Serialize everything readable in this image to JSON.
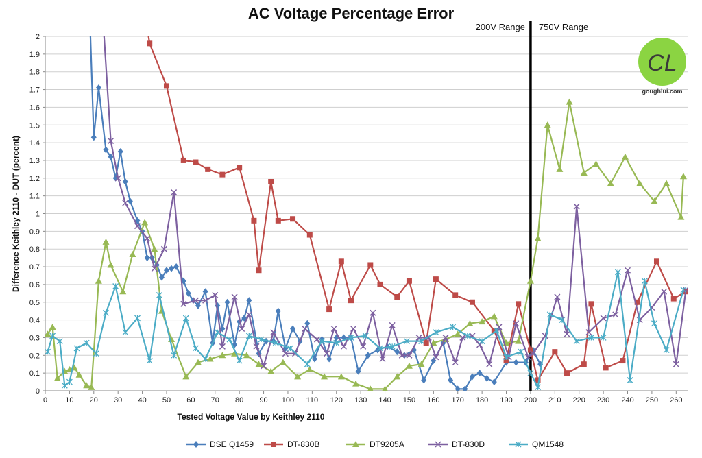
{
  "chart_data": {
    "type": "line",
    "title": "AC Voltage Percentage Error",
    "xlabel": "Tested Voltage Value by Keithley 2110",
    "ylabel": "Difference Keithley 2110 - DUT (percent)",
    "xlim": [
      0,
      265
    ],
    "ylim": [
      0,
      2
    ],
    "x_ticks": [
      0,
      10,
      20,
      30,
      40,
      50,
      60,
      70,
      80,
      90,
      100,
      110,
      120,
      130,
      140,
      150,
      160,
      170,
      180,
      190,
      200,
      210,
      220,
      230,
      240,
      250,
      260
    ],
    "y_ticks": [
      0,
      0.1,
      0.2,
      0.3,
      0.4,
      0.5,
      0.6,
      0.7,
      0.8,
      0.9,
      1,
      1.1,
      1.2,
      1.3,
      1.4,
      1.5,
      1.6,
      1.7,
      1.8,
      1.9,
      2
    ],
    "grid": "horizontal",
    "legend_position": "bottom",
    "annotations": [
      {
        "label": "200V Range",
        "side": "left",
        "x": 200
      },
      {
        "label": "750V Range",
        "side": "right",
        "x": 200
      }
    ],
    "series": [
      {
        "name": "DSE Q1459",
        "color": "#4a7ebb",
        "marker": "diamond",
        "points": [
          [
            18.5,
            2.05
          ],
          [
            20,
            1.43
          ],
          [
            22,
            1.71
          ],
          [
            25,
            1.36
          ],
          [
            27,
            1.32
          ],
          [
            29,
            1.2
          ],
          [
            31,
            1.35
          ],
          [
            33,
            1.18
          ],
          [
            35,
            1.07
          ],
          [
            38,
            0.96
          ],
          [
            40,
            0.9
          ],
          [
            42,
            0.75
          ],
          [
            44,
            0.75
          ],
          [
            46,
            0.71
          ],
          [
            48,
            0.64
          ],
          [
            50,
            0.68
          ],
          [
            52,
            0.69
          ],
          [
            54,
            0.7
          ],
          [
            57,
            0.62
          ],
          [
            59,
            0.55
          ],
          [
            61,
            0.51
          ],
          [
            63,
            0.48
          ],
          [
            66,
            0.56
          ],
          [
            69,
            0.27
          ],
          [
            71,
            0.48
          ],
          [
            73,
            0.35
          ],
          [
            75,
            0.5
          ],
          [
            78,
            0.26
          ],
          [
            80,
            0.39
          ],
          [
            82,
            0.41
          ],
          [
            84,
            0.51
          ],
          [
            88,
            0.21
          ],
          [
            91,
            0.28
          ],
          [
            94,
            0.28
          ],
          [
            96,
            0.45
          ],
          [
            99,
            0.24
          ],
          [
            102,
            0.35
          ],
          [
            105,
            0.28
          ],
          [
            108,
            0.38
          ],
          [
            111,
            0.18
          ],
          [
            114,
            0.29
          ],
          [
            117,
            0.18
          ],
          [
            120,
            0.3
          ],
          [
            123,
            0.3
          ],
          [
            126,
            0.3
          ],
          [
            129,
            0.11
          ],
          [
            133,
            0.2
          ],
          [
            137,
            0.23
          ],
          [
            141,
            0.25
          ],
          [
            145,
            0.22
          ],
          [
            148,
            0.2
          ],
          [
            152,
            0.23
          ],
          [
            156,
            0.06
          ],
          [
            160,
            0.17
          ],
          [
            164,
            0.27
          ],
          [
            167,
            0.06
          ],
          [
            170,
            0.01
          ],
          [
            173,
            0.01
          ],
          [
            176,
            0.08
          ],
          [
            179,
            0.1
          ],
          [
            182,
            0.07
          ],
          [
            185,
            0.05
          ],
          [
            190,
            0.16
          ],
          [
            194,
            0.16
          ],
          [
            198,
            0.16
          ],
          [
            201,
            0.23
          ],
          [
            204,
            0.15
          ]
        ]
      },
      {
        "name": "DT-830B",
        "color": "#be4b48",
        "marker": "square",
        "points": [
          [
            42,
            2.05
          ],
          [
            43,
            1.96
          ],
          [
            50,
            1.72
          ],
          [
            57,
            1.3
          ],
          [
            62,
            1.29
          ],
          [
            67,
            1.25
          ],
          [
            73,
            1.22
          ],
          [
            80,
            1.26
          ],
          [
            86,
            0.96
          ],
          [
            88,
            0.68
          ],
          [
            93,
            1.18
          ],
          [
            96,
            0.96
          ],
          [
            102,
            0.97
          ],
          [
            109,
            0.88
          ],
          [
            117,
            0.46
          ],
          [
            122,
            0.73
          ],
          [
            126,
            0.51
          ],
          [
            134,
            0.71
          ],
          [
            138,
            0.6
          ],
          [
            145,
            0.53
          ],
          [
            150,
            0.62
          ],
          [
            157,
            0.27
          ],
          [
            161,
            0.63
          ],
          [
            169,
            0.54
          ],
          [
            176,
            0.5
          ],
          [
            185,
            0.34
          ],
          [
            190,
            0.17
          ],
          [
            195,
            0.49
          ],
          [
            200,
            0.23
          ],
          [
            203,
            0.06
          ],
          [
            210,
            0.22
          ],
          [
            215,
            0.1
          ],
          [
            222,
            0.15
          ],
          [
            225,
            0.49
          ],
          [
            231,
            0.13
          ],
          [
            238,
            0.17
          ],
          [
            244,
            0.5
          ],
          [
            252,
            0.73
          ],
          [
            259,
            0.52
          ],
          [
            264,
            0.56
          ]
        ],
        "xy_mode": "split",
        "split_range": [
          200,
          265
        ]
      },
      {
        "name": "DT9205A",
        "color": "#98b954",
        "marker": "triangle",
        "points": [
          [
            1,
            0.32
          ],
          [
            3,
            0.36
          ],
          [
            5,
            0.07
          ],
          [
            8,
            0.11
          ],
          [
            10,
            0.12
          ],
          [
            12,
            0.13
          ],
          [
            14,
            0.09
          ],
          [
            17,
            0.03
          ],
          [
            19,
            0.02
          ],
          [
            22,
            0.62
          ],
          [
            25,
            0.84
          ],
          [
            27,
            0.71
          ],
          [
            32,
            0.56
          ],
          [
            36,
            0.77
          ],
          [
            41,
            0.95
          ],
          [
            45,
            0.8
          ],
          [
            48,
            0.45
          ],
          [
            52,
            0.29
          ],
          [
            58,
            0.08
          ],
          [
            63,
            0.16
          ],
          [
            68,
            0.18
          ],
          [
            73,
            0.2
          ],
          [
            78,
            0.21
          ],
          [
            83,
            0.2
          ],
          [
            88,
            0.15
          ],
          [
            93,
            0.11
          ],
          [
            98,
            0.16
          ],
          [
            104,
            0.08
          ],
          [
            109,
            0.12
          ],
          [
            115,
            0.08
          ],
          [
            122,
            0.08
          ],
          [
            128,
            0.04
          ],
          [
            134,
            0.01
          ],
          [
            140,
            0.01
          ],
          [
            145,
            0.08
          ],
          [
            150,
            0.14
          ],
          [
            155,
            0.15
          ],
          [
            160,
            0.27
          ],
          [
            165,
            0.29
          ],
          [
            170,
            0.32
          ],
          [
            175,
            0.38
          ],
          [
            180,
            0.39
          ],
          [
            185,
            0.42
          ],
          [
            190,
            0.27
          ],
          [
            195,
            0.28
          ],
          [
            200,
            0.62
          ],
          [
            203,
            0.86
          ],
          [
            207,
            1.5
          ],
          [
            212,
            1.25
          ],
          [
            216,
            1.63
          ],
          [
            222,
            1.23
          ],
          [
            227,
            1.28
          ],
          [
            233,
            1.17
          ],
          [
            239,
            1.32
          ],
          [
            245,
            1.17
          ],
          [
            251,
            1.07
          ],
          [
            256,
            1.17
          ],
          [
            262,
            0.98
          ],
          [
            263,
            1.21
          ]
        ]
      },
      {
        "name": "DT-830D",
        "color": "#7d60a0",
        "marker": "x",
        "points": [
          [
            24,
            2.05
          ],
          [
            27,
            1.41
          ],
          [
            30,
            1.2
          ],
          [
            33,
            1.06
          ],
          [
            38,
            0.93
          ],
          [
            42,
            0.86
          ],
          [
            45,
            0.69
          ],
          [
            49,
            0.8
          ],
          [
            53,
            1.12
          ],
          [
            57,
            0.49
          ],
          [
            62,
            0.51
          ],
          [
            66,
            0.51
          ],
          [
            70,
            0.54
          ],
          [
            73,
            0.25
          ],
          [
            78,
            0.53
          ],
          [
            81,
            0.35
          ],
          [
            84,
            0.43
          ],
          [
            87,
            0.25
          ],
          [
            90,
            0.14
          ],
          [
            94,
            0.33
          ],
          [
            99,
            0.21
          ],
          [
            103,
            0.21
          ],
          [
            107,
            0.35
          ],
          [
            112,
            0.29
          ],
          [
            116,
            0.21
          ],
          [
            119,
            0.35
          ],
          [
            123,
            0.25
          ],
          [
            127,
            0.35
          ],
          [
            131,
            0.25
          ],
          [
            135,
            0.44
          ],
          [
            139,
            0.18
          ],
          [
            143,
            0.37
          ],
          [
            147,
            0.2
          ],
          [
            150,
            0.2
          ],
          [
            154,
            0.3
          ],
          [
            158,
            0.3
          ],
          [
            161,
            0.19
          ],
          [
            165,
            0.3
          ],
          [
            169,
            0.16
          ],
          [
            172,
            0.3
          ],
          [
            176,
            0.31
          ],
          [
            179,
            0.26
          ],
          [
            183,
            0.15
          ],
          [
            187,
            0.36
          ],
          [
            191,
            0.19
          ],
          [
            194,
            0.38
          ],
          [
            199,
            0.19
          ],
          [
            201,
            0.21
          ],
          [
            206,
            0.31
          ],
          [
            211,
            0.53
          ],
          [
            215,
            0.32
          ],
          [
            219,
            1.04
          ],
          [
            224,
            0.33
          ],
          [
            230,
            0.41
          ],
          [
            235,
            0.43
          ],
          [
            240,
            0.68
          ],
          [
            245,
            0.4
          ],
          [
            250,
            0.47
          ],
          [
            255,
            0.56
          ],
          [
            260,
            0.15
          ],
          [
            264,
            0.57
          ]
        ]
      },
      {
        "name": "QM1548",
        "color": "#4bacc6",
        "marker": "asterisk",
        "points": [
          [
            1,
            0.22
          ],
          [
            3,
            0.31
          ],
          [
            6,
            0.28
          ],
          [
            8,
            0.03
          ],
          [
            10,
            0.05
          ],
          [
            13,
            0.24
          ],
          [
            17,
            0.27
          ],
          [
            21,
            0.21
          ],
          [
            25,
            0.44
          ],
          [
            29,
            0.59
          ],
          [
            33,
            0.33
          ],
          [
            38,
            0.41
          ],
          [
            43,
            0.17
          ],
          [
            47,
            0.54
          ],
          [
            53,
            0.2
          ],
          [
            58,
            0.41
          ],
          [
            62,
            0.24
          ],
          [
            66,
            0.18
          ],
          [
            71,
            0.33
          ],
          [
            76,
            0.29
          ],
          [
            80,
            0.17
          ],
          [
            84,
            0.31
          ],
          [
            89,
            0.29
          ],
          [
            95,
            0.27
          ],
          [
            101,
            0.24
          ],
          [
            108,
            0.15
          ],
          [
            114,
            0.28
          ],
          [
            120,
            0.27
          ],
          [
            126,
            0.3
          ],
          [
            132,
            0.31
          ],
          [
            138,
            0.24
          ],
          [
            143,
            0.25
          ],
          [
            149,
            0.28
          ],
          [
            155,
            0.28
          ],
          [
            161,
            0.33
          ],
          [
            168,
            0.36
          ],
          [
            174,
            0.31
          ],
          [
            180,
            0.28
          ],
          [
            186,
            0.34
          ],
          [
            190,
            0.19
          ],
          [
            196,
            0.22
          ],
          [
            200,
            0.1
          ],
          [
            203,
            0.02
          ],
          [
            208,
            0.43
          ],
          [
            213,
            0.4
          ],
          [
            219,
            0.28
          ],
          [
            225,
            0.3
          ],
          [
            230,
            0.3
          ],
          [
            236,
            0.67
          ],
          [
            241,
            0.06
          ],
          [
            247,
            0.62
          ],
          [
            251,
            0.38
          ],
          [
            256,
            0.23
          ],
          [
            263,
            0.57
          ]
        ]
      }
    ]
  },
  "logo": {
    "text": "goughlui.com",
    "monogram": "CL",
    "color": "#8bd442"
  }
}
